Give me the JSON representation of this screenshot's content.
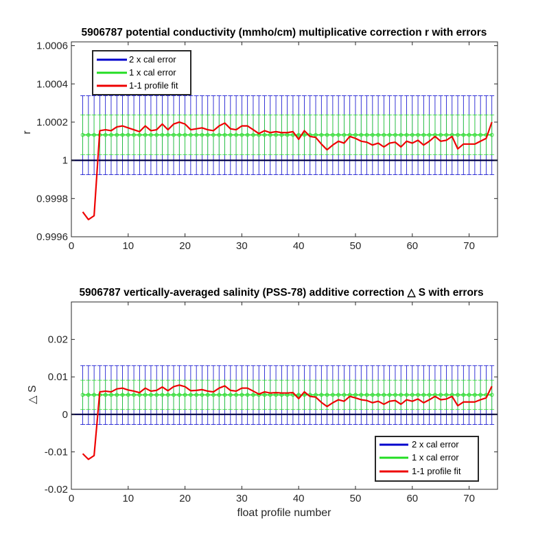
{
  "chart_data": [
    {
      "type": "line",
      "title": "5906787 potential conductivity (mmho/cm) multiplicative correction r with errors",
      "xlabel": "",
      "ylabel": "r",
      "xlim": [
        0,
        75
      ],
      "ylim": [
        0.9996,
        1.00062
      ],
      "xticks": [
        0,
        10,
        20,
        30,
        40,
        50,
        60,
        70
      ],
      "xtick_labels": [
        "0",
        "10",
        "20",
        "30",
        "40",
        "50",
        "60",
        "70"
      ],
      "yticks": [
        0.9996,
        0.9998,
        1,
        1.0002,
        1.0004,
        1.0006
      ],
      "ytick_labels": [
        "0.9996",
        "0.9998",
        "1",
        "1.0002",
        "1.0004",
        "1.0006"
      ],
      "legend_position": "top-left",
      "grid": false,
      "reference_line": 1,
      "colors": {
        "two_cal": "#0000cc",
        "one_cal": "#22dd22",
        "profile_fit": "#ee0000"
      },
      "error_bars": {
        "x_start": 2,
        "x_end": 74,
        "center": 1.000133,
        "two_cal_lower": 0.999925,
        "two_cal_upper": 1.000338,
        "one_cal_lower": 1.00003,
        "one_cal_upper": 1.000237
      },
      "series": [
        {
          "name": "2 x cal error"
        },
        {
          "name": "1 x cal error"
        },
        {
          "name": "1-1 profile fit",
          "x": [
            2,
            3,
            4,
            5,
            6,
            7,
            8,
            9,
            10,
            11,
            12,
            13,
            14,
            15,
            16,
            17,
            18,
            19,
            20,
            21,
            22,
            23,
            24,
            25,
            26,
            27,
            28,
            29,
            30,
            31,
            32,
            33,
            34,
            35,
            36,
            37,
            38,
            39,
            40,
            41,
            42,
            43,
            44,
            45,
            46,
            47,
            48,
            49,
            50,
            51,
            52,
            53,
            54,
            55,
            56,
            57,
            58,
            59,
            60,
            61,
            62,
            63,
            64,
            65,
            66,
            67,
            68,
            69,
            70,
            71,
            72,
            73,
            74
          ],
          "y": [
            0.99973,
            0.99969,
            0.99971,
            1.000155,
            1.00016,
            1.000155,
            1.000175,
            1.00018,
            1.00017,
            1.00016,
            1.00015,
            1.00018,
            1.000155,
            1.00016,
            1.00019,
            1.00016,
            1.00019,
            1.0002,
            1.00019,
            1.00016,
            1.000165,
            1.00017,
            1.00016,
            1.000155,
            1.00018,
            1.000195,
            1.000165,
            1.00016,
            1.00018,
            1.00018,
            1.00016,
            1.00014,
            1.000155,
            1.000145,
            1.00015,
            1.000145,
            1.000145,
            1.00015,
            1.00011,
            1.000155,
            1.000125,
            1.00012,
            1.000085,
            1.000055,
            1.00008,
            1.0001,
            1.00009,
            1.000125,
            1.000115,
            1.0001,
            1.000095,
            1.00008,
            1.00009,
            1.00007,
            1.00009,
            1.000095,
            1.00007,
            1.0001,
            1.00009,
            1.000105,
            1.00008,
            1.0001,
            1.000125,
            1.0001,
            1.000105,
            1.000125,
            1.00006,
            1.000085,
            1.000085,
            1.000085,
            1.0001,
            1.000115,
            1.0002
          ]
        }
      ]
    },
    {
      "type": "line",
      "title": "5906787 vertically-averaged salinity (PSS-78) additive correction △ S with errors",
      "xlabel": "float profile number",
      "ylabel": "△ S",
      "xlim": [
        0,
        75
      ],
      "ylim": [
        -0.02,
        0.03
      ],
      "xticks": [
        0,
        10,
        20,
        30,
        40,
        50,
        60,
        70
      ],
      "xtick_labels": [
        "0",
        "10",
        "20",
        "30",
        "40",
        "50",
        "60",
        "70"
      ],
      "yticks": [
        -0.02,
        -0.01,
        0,
        0.01,
        0.02
      ],
      "ytick_labels": [
        "-0.02",
        "-0.01",
        "0",
        "0.01",
        "0.02"
      ],
      "legend_position": "bottom-right",
      "grid": false,
      "reference_line": 0,
      "colors": {
        "two_cal": "#0000cc",
        "one_cal": "#22dd22",
        "profile_fit": "#ee0000"
      },
      "error_bars": {
        "x_start": 2,
        "x_end": 74,
        "center": 0.0052,
        "two_cal_lower": -0.0027,
        "two_cal_upper": 0.013,
        "one_cal_lower": 0.0013,
        "one_cal_upper": 0.0091
      },
      "series": [
        {
          "name": "2 x cal error"
        },
        {
          "name": "1 x cal error"
        },
        {
          "name": "1-1 profile fit",
          "x": [
            2,
            3,
            4,
            5,
            6,
            7,
            8,
            9,
            10,
            11,
            12,
            13,
            14,
            15,
            16,
            17,
            18,
            19,
            20,
            21,
            22,
            23,
            24,
            25,
            26,
            27,
            28,
            29,
            30,
            31,
            32,
            33,
            34,
            35,
            36,
            37,
            38,
            39,
            40,
            41,
            42,
            43,
            44,
            45,
            46,
            47,
            48,
            49,
            50,
            51,
            52,
            53,
            54,
            55,
            56,
            57,
            58,
            59,
            60,
            61,
            62,
            63,
            64,
            65,
            66,
            67,
            68,
            69,
            70,
            71,
            72,
            73,
            74
          ],
          "y": [
            -0.0105,
            -0.012,
            -0.011,
            0.006,
            0.0062,
            0.006,
            0.0068,
            0.007,
            0.0065,
            0.0062,
            0.0058,
            0.007,
            0.0062,
            0.0064,
            0.0073,
            0.0063,
            0.0074,
            0.0078,
            0.0074,
            0.0063,
            0.0064,
            0.0066,
            0.0062,
            0.006,
            0.007,
            0.0076,
            0.0064,
            0.0062,
            0.007,
            0.007,
            0.0062,
            0.0054,
            0.006,
            0.0057,
            0.0058,
            0.0057,
            0.0057,
            0.0058,
            0.0042,
            0.006,
            0.0048,
            0.0046,
            0.0032,
            0.0021,
            0.0031,
            0.0039,
            0.0035,
            0.0048,
            0.0044,
            0.0039,
            0.0037,
            0.0031,
            0.0035,
            0.0027,
            0.0035,
            0.0037,
            0.0027,
            0.0039,
            0.0035,
            0.0041,
            0.0031,
            0.0039,
            0.0048,
            0.0039,
            0.0041,
            0.0048,
            0.0023,
            0.0033,
            0.0033,
            0.0033,
            0.0039,
            0.0044,
            0.0075
          ]
        }
      ]
    }
  ]
}
